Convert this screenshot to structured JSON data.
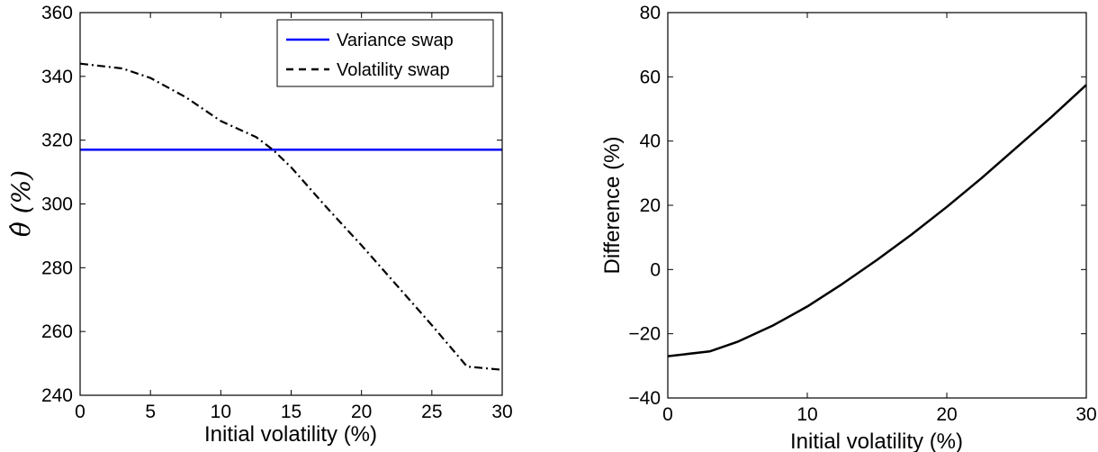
{
  "chart_data": [
    {
      "type": "line",
      "title": "",
      "xlabel": "Initial volatility (%)",
      "ylabel": "θ̂ (%)",
      "xlim": [
        0,
        30
      ],
      "ylim": [
        240,
        360
      ],
      "xticks": [
        0,
        5,
        10,
        15,
        20,
        25,
        30
      ],
      "yticks": [
        240,
        260,
        280,
        300,
        320,
        340,
        360
      ],
      "grid": false,
      "legend": {
        "placement": "top-right"
      },
      "series": [
        {
          "name": "Variance swap",
          "color": "#0000ff",
          "style": "solid",
          "x": [
            0,
            5,
            10,
            15,
            20,
            25,
            30
          ],
          "y": [
            317,
            317,
            317,
            317,
            317,
            317,
            317
          ]
        },
        {
          "name": "Volatility swap",
          "color": "#000000",
          "style": "dash-dot",
          "x": [
            0,
            3,
            5,
            7.5,
            10,
            12.5,
            13.7,
            15,
            17.5,
            20,
            22.5,
            25,
            27.5,
            30
          ],
          "y": [
            344,
            342.5,
            339.5,
            333.5,
            326,
            321,
            317,
            311.5,
            299,
            287,
            274.5,
            262,
            249,
            248
          ]
        }
      ]
    },
    {
      "type": "line",
      "title": "",
      "xlabel": "Initial volatility (%)",
      "ylabel": "Difference (%)",
      "xlim": [
        0,
        30
      ],
      "ylim": [
        -40,
        80
      ],
      "xticks": [
        0,
        10,
        20,
        30
      ],
      "yticks": [
        -40,
        -20,
        0,
        20,
        40,
        60,
        80
      ],
      "grid": false,
      "series": [
        {
          "color": "#000000",
          "style": "solid",
          "x": [
            0,
            3,
            5,
            7.5,
            10,
            12.5,
            15,
            17.5,
            20,
            22.5,
            25,
            27.5,
            30
          ],
          "y": [
            -27,
            -25.5,
            -22.5,
            -17.5,
            -11.5,
            -4.5,
            3,
            11,
            19.5,
            28.5,
            38,
            47.5,
            57.5
          ]
        }
      ]
    }
  ]
}
